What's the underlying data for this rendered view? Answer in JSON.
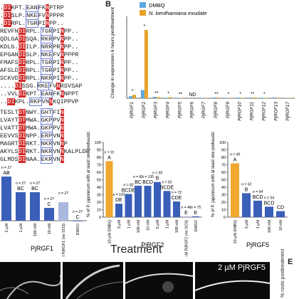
{
  "panel_b_letter": "B",
  "panel_e_letter": "E",
  "alignment": {
    "rows": [
      {
        "pre": ".",
        "mark": "DI",
        "mid": "KPT.",
        "box": "EAN",
        "post": "FK",
        "hi2": "N",
        "tail": "PTRP"
      },
      {
        "pre": ".",
        "mark": "DI",
        "mid": "SLP.",
        "box": "NKE",
        "post": "FV",
        "hi2": "N",
        "tail": "PPPR"
      },
      {
        "pre": ".",
        "mark": "DI",
        "mid": "RPL.",
        "box": "TGR",
        "post": "PI",
        "hi2": "N",
        "tail": "PP.."
      },
      {
        "pre": "REVFN",
        "mark": "DI",
        "mid": "RPL.",
        "box": "TGR",
        "post": "PI",
        "hi2": "N",
        "tail": "PP.."
      },
      {
        "pre": "QDLGA",
        "mark": "DI",
        "mid": "SQA.",
        "box": "RKR",
        "post": "PV",
        "hi2": "N",
        "tail": "PP.."
      },
      {
        "pre": "KDLG.",
        "mark": "DI",
        "mid": "ILP.",
        "box": "NRR",
        "post": "PR",
        "hi2": "N",
        "tail": "PP.."
      },
      {
        "pre": "EPGAN",
        "mark": "DI",
        "mid": "SLP.",
        "box": "NKE",
        "post": "FV",
        "hi2": "N",
        "tail": "PPPR"
      },
      {
        "pre": "FMAFS",
        "mark": "DI",
        "mid": "RPL.",
        "box": "TGR",
        "post": "PI",
        "hi2": "N",
        "tail": "PP.."
      },
      {
        "pre": "AFSLD",
        "mark": "DI",
        "mid": "RPL.",
        "box": "TGR",
        "post": "PI",
        "hi2": "N",
        "tail": "PP.."
      },
      {
        "pre": "SCKVD",
        "mark": "DI",
        "mid": "RPL.",
        "box": "NKR",
        "post": "PI",
        "hi2": "N",
        "tail": "PP.."
      },
      {
        "pre": "....",
        "mark": "DI",
        "mid": "SSG.",
        "box": "RKE",
        "post": "FV",
        "hi2": "N",
        "tail": "RSVSAP"
      },
      {
        "pre": "..VVL",
        "mark": "DI",
        "mid": "KPT.",
        "box": "EAN",
        "post": "FK",
        "hi2": "N",
        "tail": "NPPT"
      },
      {
        "pre": "..",
        "mark": "DI",
        "mid": "KPL.",
        "box": "RKP",
        "post": "VN",
        "hi2": "N",
        "tail": "KQIPPVP"
      },
      {
        "pre": "TESLT",
        "mark": "DT",
        "mid": "NWY.",
        "box": "GHT",
        "post": "FI",
        "hi2": "N",
        "tail": ""
      },
      {
        "pre": "LVAYT",
        "mark": "DT",
        "mid": "MWA.",
        "box": "GKP",
        "post": "PV",
        "hi2": "N",
        "tail": ""
      },
      {
        "pre": "LVATT",
        "mark": "DT",
        "mid": "MWA.",
        "box": "GKP",
        "post": "PV",
        "hi2": "N",
        "tail": ""
      },
      {
        "pre": "EEVVS",
        "mark": "DI",
        "mid": "NPP.",
        "box": "ERP",
        "post": "VN",
        "hi2": "N",
        "tail": ""
      },
      {
        "pre": "MAGRT",
        "mark": "DI",
        "mid": "RKT.",
        "box": "NKR",
        "post": "VN",
        "hi2": "N",
        "tail": "P"
      },
      {
        "pre": "AKYLS",
        "mark": "DI",
        "mid": "RKT.",
        "box": "NKR",
        "post": "VN",
        "hi2": "N",
        "tail": "KALPLDP"
      },
      {
        "pre": "GLMDS",
        "mark": "DI",
        "mid": "NAA.",
        "box": "EKR",
        "post": "VN",
        "hi2": "N",
        "tail": ""
      }
    ]
  },
  "chart_b": {
    "legend": [
      "DMBQ",
      "N. benthamiana exudate"
    ],
    "ylabel": "Change in expression 6 hours posttreatment",
    "categories": [
      "PjRGF1",
      "PjRGF2",
      "PjRGF3",
      "PjRGF4",
      "PjRGF5",
      "PjRGF6",
      "PjRGF7",
      "PjRGF8",
      "PjRGF9",
      "PjRGF10",
      "PjRGF11",
      "PjRGF12",
      "PjRGF13",
      "PjRGF17"
    ],
    "annotations": [
      "*",
      "*",
      "**",
      "*",
      "**",
      "ND",
      "",
      "**",
      "*",
      "*",
      "**",
      "*",
      "",
      ""
    ]
  },
  "chart_c1": {
    "xlabel": "PjRGF1",
    "bars": [
      {
        "label": "AB",
        "n": "n = 27"
      },
      {
        "label": "BC",
        "n": "n = 27"
      },
      {
        "label": "BC",
        "n": "n = 27"
      },
      {
        "label": "C",
        "n": "n = 27"
      },
      {
        "label": "",
        "n": "n = 27"
      },
      {
        "label": "C",
        "n": "n = 27"
      }
    ],
    "ticks": [
      "2 µM",
      "1 µM",
      "100 nM",
      "10 nM",
      "2 µM PjRGF1 (no SO3)",
      "DMSO"
    ]
  },
  "chart_c2": {
    "xlabel": "PjRGF2",
    "ylabel": "% of P. japonicum with at least one prehaustorium",
    "bars": [
      {
        "label": "A",
        "n": "n = 91"
      },
      {
        "label": "DE",
        "n": "n = 101"
      },
      {
        "label": "BCDE",
        "n": "n = 82"
      },
      {
        "label": "BC",
        "n": "n = 81"
      },
      {
        "label": "BCD",
        "n": "n = 135"
      },
      {
        "label": "B",
        "n": "n = 99"
      },
      {
        "label": "BCDE",
        "n": "n = 81"
      },
      {
        "label": "CDE",
        "n": "n = 72"
      },
      {
        "label": "E",
        "n": "n = 46"
      },
      {
        "label": "E",
        "n": "n = 75"
      }
    ],
    "ticks": [
      "10 µM DMBQ",
      "3 µM",
      "1 µM",
      "100 nM",
      "10 nM",
      "5 µM",
      "1 µM",
      "100 nM",
      "2 µM PjRGF2 (no SO3)",
      "DMSO"
    ],
    "yticks": [
      "0",
      "10",
      "20",
      "30",
      "40",
      "50",
      "60",
      "70",
      "80",
      "90",
      "100"
    ]
  },
  "chart_c3": {
    "xlabel": "PjRGF5",
    "ylabel": "% of P. japonicum with at least one prehaustorium",
    "bars": [
      {
        "label": "A",
        "n": "n = 49"
      },
      {
        "label": "B",
        "n": "n = 53"
      },
      {
        "label": "BCD",
        "n": "n = 54"
      },
      {
        "label": "BCD",
        "n": "n = 54"
      },
      {
        "label": "CD",
        "n": ""
      }
    ],
    "ticks": [
      "10 µM DMBQ",
      "3 µM",
      "1 µM",
      "100 nM",
      "10 nM"
    ],
    "yticks": [
      "0",
      "10",
      "20",
      "30",
      "40",
      "50",
      "60",
      "70",
      "80",
      "90",
      "100"
    ]
  },
  "common_xlabel": "Treatment",
  "micro_label": "2 µM PjRGF5",
  "panel_e_ylabel": "% roots posttreatment",
  "colors": {
    "dmbq": "#5aa9df",
    "exudate": "#e8a22a",
    "bar_blue": "#3a5fb8",
    "bar_orange": "#f0a830",
    "bar_light": "#aab8e0"
  },
  "chart_data": [
    {
      "type": "bar",
      "title": "",
      "ylabel": "Change in expression 6 hours posttreatment",
      "categories": [
        "PjRGF1",
        "PjRGF2",
        "PjRGF3",
        "PjRGF4",
        "PjRGF5",
        "PjRGF6",
        "PjRGF7",
        "PjRGF8",
        "PjRGF9",
        "PjRGF10",
        "PjRGF11",
        "PjRGF12",
        "PjRGF13",
        "PjRGF17"
      ],
      "series": [
        {
          "name": "DMBQ",
          "values": [
            1.5,
            6,
            1,
            0.4,
            0.3,
            0,
            0.3,
            0.6,
            0.3,
            0.4,
            0.5,
            0.4,
            0.6,
            0.3
          ]
        },
        {
          "name": "N. benthamiana exudate",
          "values": [
            2.5,
            50,
            0.8,
            0.8,
            0.3,
            0,
            0.2,
            0.5,
            0.2,
            0.3,
            0.5,
            0.3,
            0.4,
            0.2
          ]
        }
      ],
      "ylim": [
        0,
        60
      ],
      "legend": "top-left"
    },
    {
      "type": "bar",
      "xlabel": "PjRGF1",
      "categories": [
        "2 µM",
        "1 µM",
        "100 nM",
        "10 nM",
        "2 µM PjRGF1 (no SO3)",
        "DMSO"
      ],
      "values": [
        62,
        40,
        40,
        18,
        26,
        0
      ],
      "ylim": [
        0,
        100
      ]
    },
    {
      "type": "bar",
      "xlabel": "PjRGF2",
      "ylabel": "% of P. japonicum with at least one prehaustorium",
      "categories": [
        "10 µM DMBQ",
        "3 µM",
        "1 µM",
        "100 nM",
        "10 nM",
        "5 µM",
        "1 µM",
        "100 nM",
        "2 µM PjRGF2 (no SO3)",
        "DMSO"
      ],
      "values": [
        75,
        18,
        31,
        42,
        42,
        47,
        35,
        21,
        1,
        1
      ],
      "ylim": [
        0,
        100
      ]
    },
    {
      "type": "bar",
      "xlabel": "PjRGF5",
      "ylabel": "% of P. japonicum with at least one prehaustorium",
      "categories": [
        "10 µM DMBQ",
        "3 µM",
        "1 µM",
        "100 nM",
        "10 nM"
      ],
      "values": [
        72,
        32,
        22,
        14,
        8
      ],
      "ylim": [
        0,
        100
      ]
    }
  ]
}
